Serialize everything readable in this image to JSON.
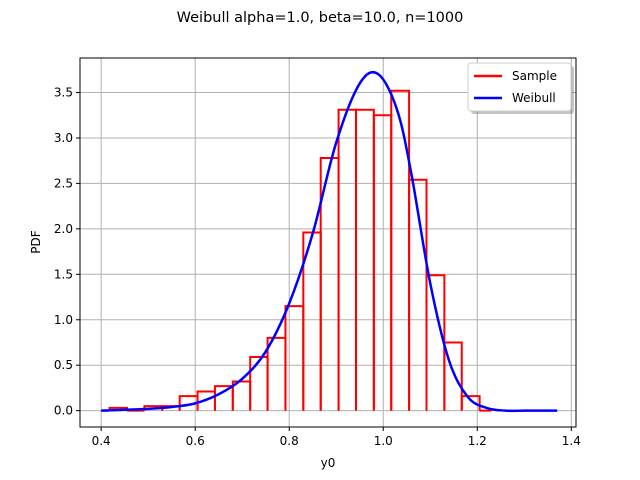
{
  "chart_data": {
    "type": "line",
    "title": "Weibull alpha=1.0, beta=10.0, n=1000",
    "xlabel": "y0",
    "ylabel": "PDF",
    "xlim": [
      0.355,
      1.41
    ],
    "ylim": [
      -0.18,
      3.88
    ],
    "xticks": [
      "0.4",
      "0.6",
      "0.8",
      "1.0",
      "1.2",
      "1.4"
    ],
    "xtick_values": [
      0.4,
      0.6,
      0.8,
      1.0,
      1.2,
      1.4
    ],
    "yticks": [
      "0.0",
      "0.5",
      "1.0",
      "1.5",
      "2.0",
      "2.5",
      "3.0",
      "3.5"
    ],
    "ytick_values": [
      0.0,
      0.5,
      1.0,
      1.5,
      2.0,
      2.5,
      3.0,
      3.5
    ],
    "grid": true,
    "legend_position": "top-right",
    "series": [
      {
        "name": "Sample",
        "color": "#ff0000",
        "kind": "histogram",
        "bin_edges": [
          0.4,
          0.418,
          0.455,
          0.492,
          0.53,
          0.567,
          0.605,
          0.642,
          0.68,
          0.717,
          0.754,
          0.792,
          0.83,
          0.867,
          0.905,
          0.942,
          0.98,
          1.017,
          1.055,
          1.092,
          1.13,
          1.167,
          1.205,
          1.23
        ],
        "values": [
          0.0,
          0.03,
          0.0,
          0.05,
          0.05,
          0.16,
          0.21,
          0.27,
          0.32,
          0.59,
          0.8,
          1.15,
          1.96,
          2.78,
          3.31,
          3.31,
          3.25,
          3.52,
          2.54,
          1.49,
          0.75,
          0.16,
          0.0
        ]
      },
      {
        "name": "Weibull",
        "color": "#0000ff",
        "kind": "pdf",
        "x": [
          0.4,
          0.45,
          0.5,
          0.55,
          0.6,
          0.65,
          0.7,
          0.75,
          0.8,
          0.85,
          0.9,
          0.95,
          0.99,
          1.03,
          1.06,
          1.1,
          1.14,
          1.18,
          1.22,
          1.26,
          1.3,
          1.34,
          1.37
        ],
        "y": [
          0.0,
          0.01,
          0.02,
          0.04,
          0.08,
          0.18,
          0.35,
          0.65,
          1.18,
          1.95,
          2.95,
          3.6,
          3.7,
          3.3,
          2.6,
          1.4,
          0.55,
          0.15,
          0.03,
          0.0,
          0.0,
          0.0,
          0.0
        ]
      }
    ]
  }
}
